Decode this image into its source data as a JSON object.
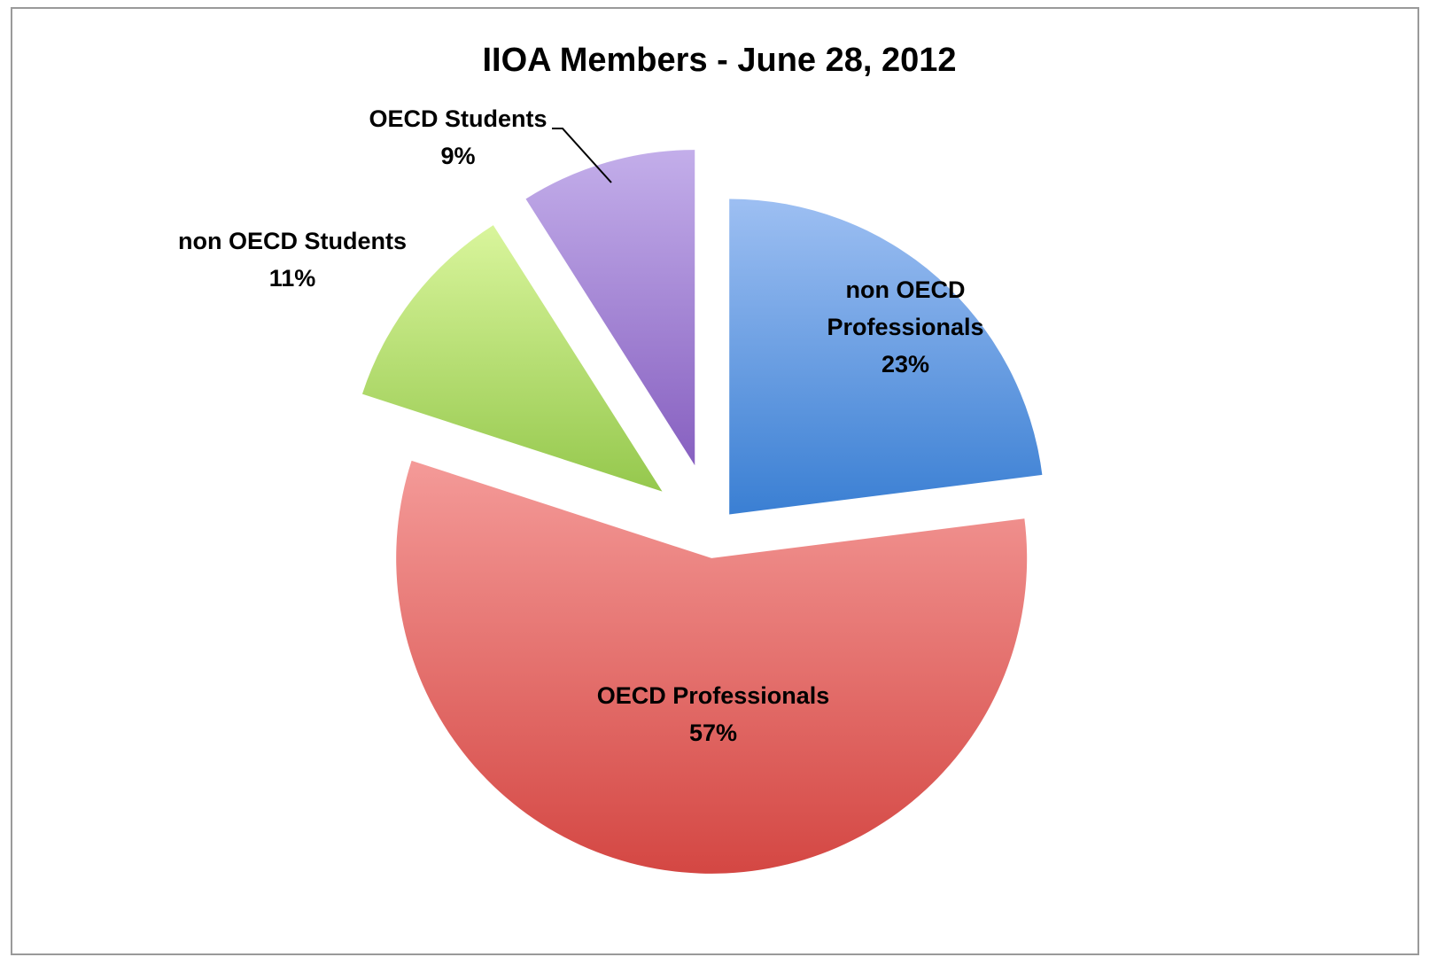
{
  "chart_data": {
    "type": "pie",
    "title": "IIOA Members - June 28, 2012",
    "slices": [
      {
        "label": "non OECD Professionals",
        "lines": [
          "non OECD",
          "Professionals"
        ],
        "value": 23,
        "percent_label": "23%",
        "color_top": "#9dbff2",
        "color_bottom": "#3a7fd3"
      },
      {
        "label": "OECD Professionals",
        "lines": [
          "OECD Professionals"
        ],
        "value": 57,
        "percent_label": "57%",
        "color_top": "#f49a98",
        "color_bottom": "#d44743"
      },
      {
        "label": "non OECD Students",
        "lines": [
          "non OECD Students"
        ],
        "value": 11,
        "percent_label": "11%",
        "color_top": "#d9f59c",
        "color_bottom": "#95c84d"
      },
      {
        "label": "OECD Students",
        "lines": [
          "OECD Students"
        ],
        "value": 9,
        "percent_label": "9%",
        "color_top": "#c3aeea",
        "color_bottom": "#8760c0"
      }
    ],
    "exploded": true,
    "legend": "none"
  }
}
